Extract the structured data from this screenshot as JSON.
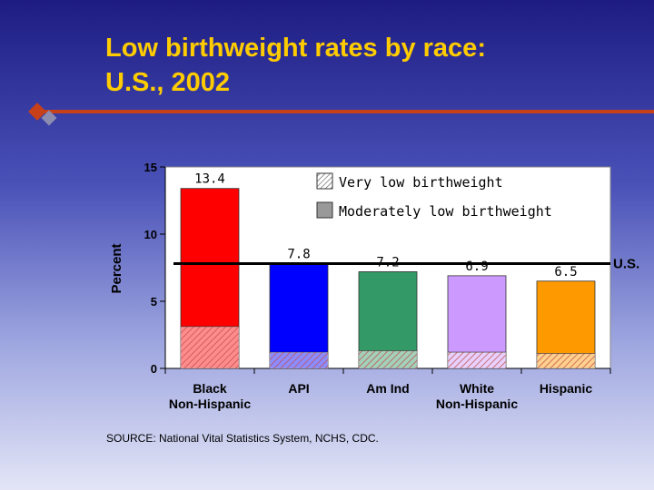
{
  "slide": {
    "title_lines": [
      "Low birthweight rates by race:",
      "U.S., 2002"
    ],
    "source": "SOURCE: National Vital Statistics System, NCHS, CDC.",
    "colors": {
      "title": "#ffcc00",
      "accent_rule": "#c8401a"
    }
  },
  "chart_data": {
    "type": "bar",
    "stacked": true,
    "title": "",
    "xlabel": "",
    "ylabel": "Percent",
    "ylim": [
      0,
      15
    ],
    "yticks": [
      0,
      5,
      10,
      15
    ],
    "grid": false,
    "legend_position": "top-right",
    "categories": [
      {
        "line1": "Black",
        "line2": "Non-Hispanic"
      },
      {
        "line1": "API",
        "line2": ""
      },
      {
        "line1": "Am Ind",
        "line2": ""
      },
      {
        "line1": "White",
        "line2": "Non-Hispanic"
      },
      {
        "line1": "Hispanic",
        "line2": ""
      }
    ],
    "totals": [
      13.4,
      7.8,
      7.2,
      6.9,
      6.5
    ],
    "total_labels": [
      "13.4",
      "7.8",
      "7.2",
      "6.9",
      "6.5"
    ],
    "series": [
      {
        "name": "Very low birthweight",
        "pattern": "hatched",
        "values": [
          3.1,
          1.2,
          1.3,
          1.2,
          1.1
        ]
      },
      {
        "name": "Moderately low birthweight",
        "pattern": "solid",
        "values": [
          10.3,
          6.6,
          5.9,
          5.7,
          5.4
        ]
      }
    ],
    "bar_colors": [
      "#ff0000",
      "#0000ff",
      "#339966",
      "#cc99ff",
      "#ff9900"
    ],
    "reference_line": {
      "label": "U.S.",
      "value": 7.8
    }
  }
}
